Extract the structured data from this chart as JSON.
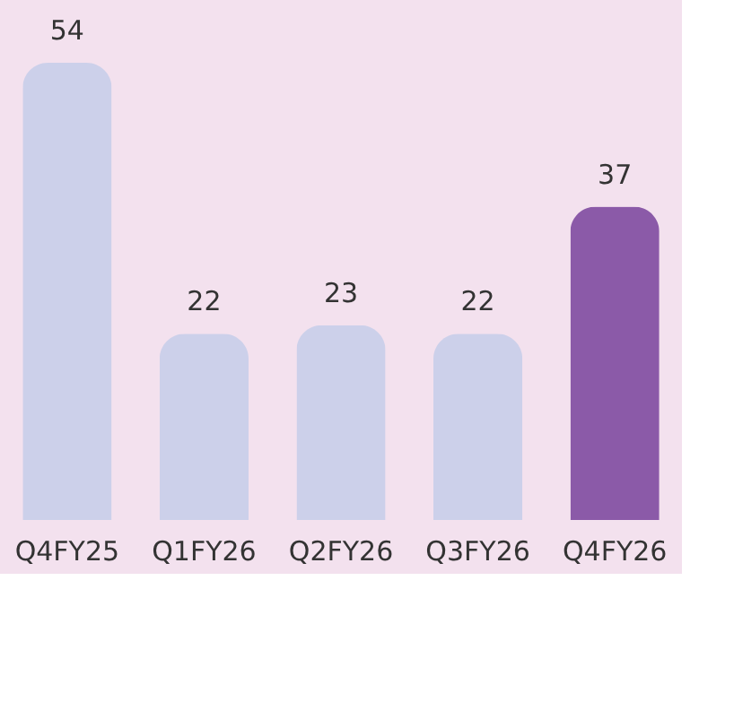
{
  "chart_data": {
    "type": "bar",
    "categories": [
      "Q4FY25",
      "Q1FY26",
      "Q2FY26",
      "Q3FY26",
      "Q4FY26"
    ],
    "values": [
      54,
      22,
      23,
      22,
      37
    ],
    "colors": [
      "#ccd0ea",
      "#ccd0ea",
      "#ccd0ea",
      "#ccd0ea",
      "#8b5aa8"
    ],
    "data_labels": true,
    "grid": false
  }
}
